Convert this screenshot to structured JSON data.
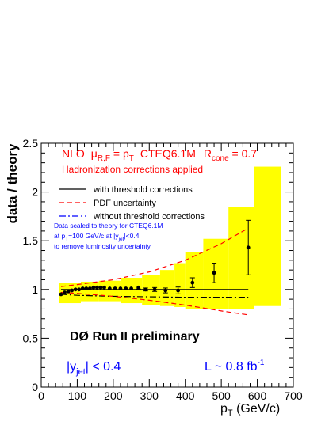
{
  "chart_data": {
    "type": "scatter",
    "xlabel": "p_T (GeV/c)",
    "ylabel": "data / theory",
    "xlim": [
      0,
      700
    ],
    "ylim": [
      0,
      2.5
    ],
    "x_ticks": [
      0,
      100,
      200,
      300,
      400,
      500,
      600,
      700
    ],
    "y_ticks": [
      0,
      0.5,
      1,
      1.5,
      2,
      2.5
    ],
    "x_tick_labels": [
      "0",
      "100",
      "200",
      "300",
      "400",
      "500",
      "600",
      "700"
    ],
    "y_tick_labels": [
      "0",
      "0.5",
      "1",
      "1.5",
      "2",
      "2.5"
    ],
    "grid": false,
    "annotations": {
      "nlo_line": {
        "prefix": "NLO",
        "mu": "μ",
        "mu_sub": "R,F",
        "eq": " = p",
        "pt_sub": "T",
        "pdf_name": "CTEQ6.1M",
        "rcone": "R",
        "rcone_sub": "cone",
        "rcone_val": " = 0.7"
      },
      "hadronization": "Hadronization corrections applied",
      "scaling_lines": [
        {
          "text": "Data scaled to theory for CTEQ6.1M"
        },
        {
          "pre": "at p",
          "sub1": "T",
          "mid": "=100 GeV/c at |y",
          "sub2": "jet",
          "post": "|<0.4"
        },
        {
          "text": "to remove luminosity uncertainty"
        }
      ],
      "experiment": "DØ Run II preliminary",
      "rapidity": {
        "pre": "|y",
        "sub": "jet",
        "post": "| < 0.4"
      },
      "luminosity": {
        "pre": "L ~ 0.8 fb",
        "sup": "-1"
      },
      "x_axis_title": {
        "pre": "p",
        "sub": "T",
        "post": " (GeV/c)"
      }
    },
    "legend": [
      {
        "name": "with threshold corrections",
        "style": "solid",
        "color": "#000000"
      },
      {
        "name": "PDF uncertainty",
        "style": "dashed",
        "color": "#ff0000"
      },
      {
        "name": "without threshold corrections",
        "style": "dashdot",
        "color": "#0000ff"
      }
    ],
    "colors": {
      "band": "#ffff00",
      "text_red": "#ff0000",
      "text_blue": "#0000ff",
      "data": "#000000"
    },
    "systematic_band": [
      {
        "x0": 50,
        "x1": 110,
        "lo": 0.86,
        "hi": 1.07
      },
      {
        "x0": 110,
        "x1": 160,
        "lo": 0.88,
        "hi": 1.08
      },
      {
        "x0": 160,
        "x1": 220,
        "lo": 0.88,
        "hi": 1.09
      },
      {
        "x0": 220,
        "x1": 280,
        "lo": 0.86,
        "hi": 1.12
      },
      {
        "x0": 280,
        "x1": 330,
        "lo": 0.84,
        "hi": 1.15
      },
      {
        "x0": 330,
        "x1": 370,
        "lo": 0.83,
        "hi": 1.2
      },
      {
        "x0": 370,
        "x1": 400,
        "lo": 0.82,
        "hi": 1.27
      },
      {
        "x0": 400,
        "x1": 450,
        "lo": 0.8,
        "hi": 1.38
      },
      {
        "x0": 450,
        "x1": 520,
        "lo": 0.8,
        "hi": 1.52
      },
      {
        "x0": 520,
        "x1": 590,
        "lo": 0.8,
        "hi": 1.85
      },
      {
        "x0": 590,
        "x1": 665,
        "lo": 0.83,
        "hi": 2.26
      }
    ],
    "pdf_upper": [
      [
        55,
        1.03
      ],
      [
        100,
        1.05
      ],
      [
        200,
        1.1
      ],
      [
        300,
        1.18
      ],
      [
        400,
        1.3
      ],
      [
        500,
        1.47
      ],
      [
        575,
        1.63
      ]
    ],
    "pdf_lower": [
      [
        55,
        0.97
      ],
      [
        100,
        0.96
      ],
      [
        200,
        0.93
      ],
      [
        300,
        0.89
      ],
      [
        400,
        0.84
      ],
      [
        500,
        0.78
      ],
      [
        575,
        0.74
      ]
    ],
    "with_threshold": [
      [
        55,
        1.0
      ],
      [
        575,
        1.0
      ]
    ],
    "without_threshold": [
      [
        55,
        0.95
      ],
      [
        100,
        0.94
      ],
      [
        200,
        0.93
      ],
      [
        300,
        0.925
      ],
      [
        400,
        0.92
      ],
      [
        500,
        0.92
      ],
      [
        575,
        0.92
      ]
    ],
    "series": [
      {
        "name": "data",
        "points": [
          {
            "x": 55,
            "y": 0.95,
            "err": 0.01
          },
          {
            "x": 65,
            "y": 0.97,
            "err": 0.01
          },
          {
            "x": 75,
            "y": 0.98,
            "err": 0.01
          },
          {
            "x": 85,
            "y": 0.99,
            "err": 0.01
          },
          {
            "x": 95,
            "y": 1.0,
            "err": 0.01
          },
          {
            "x": 105,
            "y": 1.0,
            "err": 0.01
          },
          {
            "x": 115,
            "y": 1.01,
            "err": 0.01
          },
          {
            "x": 125,
            "y": 1.01,
            "err": 0.01
          },
          {
            "x": 135,
            "y": 1.01,
            "err": 0.01
          },
          {
            "x": 145,
            "y": 1.02,
            "err": 0.01
          },
          {
            "x": 155,
            "y": 1.02,
            "err": 0.01
          },
          {
            "x": 165,
            "y": 1.02,
            "err": 0.01
          },
          {
            "x": 175,
            "y": 1.02,
            "err": 0.01
          },
          {
            "x": 190,
            "y": 1.01,
            "err": 0.01
          },
          {
            "x": 205,
            "y": 1.01,
            "err": 0.01
          },
          {
            "x": 220,
            "y": 1.01,
            "err": 0.01
          },
          {
            "x": 235,
            "y": 1.01,
            "err": 0.01
          },
          {
            "x": 250,
            "y": 1.01,
            "err": 0.01
          },
          {
            "x": 270,
            "y": 1.02,
            "err": 0.015
          },
          {
            "x": 290,
            "y": 1.0,
            "err": 0.015
          },
          {
            "x": 315,
            "y": 1.0,
            "err": 0.02
          },
          {
            "x": 345,
            "y": 0.99,
            "err": 0.025
          },
          {
            "x": 380,
            "y": 0.99,
            "err": 0.035
          },
          {
            "x": 420,
            "y": 1.07,
            "err": 0.05
          },
          {
            "x": 480,
            "y": 1.17,
            "err": 0.1
          },
          {
            "x": 575,
            "y": 1.43,
            "err": 0.28
          }
        ]
      }
    ]
  }
}
